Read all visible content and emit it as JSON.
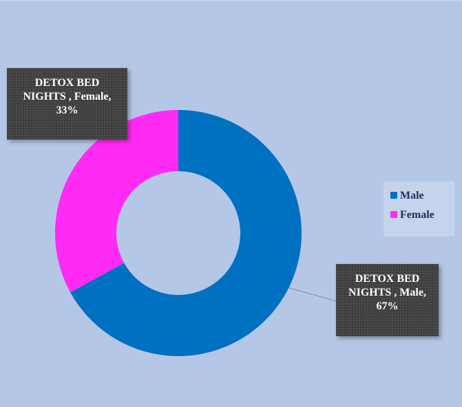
{
  "chart_data": {
    "type": "pie",
    "donut": true,
    "categories": [
      "Male",
      "Female"
    ],
    "values": [
      67,
      33
    ],
    "value_labels": [
      "DETOX BED NIGHTS , Male, 67%",
      "DETOX BED NIGHTS , Female, 33%"
    ],
    "colors": [
      "#0070c0",
      "#ff2bf5"
    ],
    "legend": "right"
  }
}
